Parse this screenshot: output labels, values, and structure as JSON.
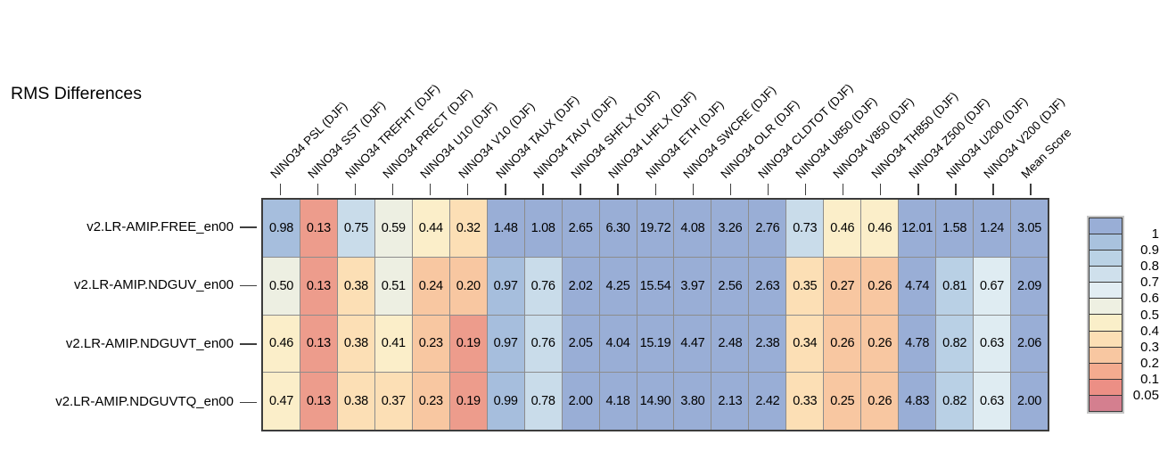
{
  "title": "RMS Differences",
  "chart_data": {
    "type": "heatmap",
    "title": "RMS Differences",
    "legend_position": "right",
    "columns": [
      "NINO34 PSL (DJF)",
      "NINO34 SST (DJF)",
      "NINO34 TREFHT (DJF)",
      "NINO34 PRECT (DJF)",
      "NINO34 U10 (DJF)",
      "NINO34 V10 (DJF)",
      "NINO34 TAUX (DJF)",
      "NINO34 TAUY (DJF)",
      "NINO34 SHFLX (DJF)",
      "NINO34 LHFLX (DJF)",
      "NINO34 ETH (DJF)",
      "NINO34 SWCRE (DJF)",
      "NINO34 OLR (DJF)",
      "NINO34 CLDTOT (DJF)",
      "NINO34 U850 (DJF)",
      "NINO34 V850 (DJF)",
      "NINO34 TH850 (DJF)",
      "NINO34 Z500 (DJF)",
      "NINO34 U200 (DJF)",
      "NINO34 V200 (DJF)",
      "Mean Score"
    ],
    "rows": [
      "v2.LR-AMIP.FREE_en00",
      "v2.LR-AMIP.NDGUV_en00",
      "v2.LR-AMIP.NDGUVT_en00",
      "v2.LR-AMIP.NDGUVTQ_en00"
    ],
    "values": [
      [
        "0.98",
        "0.13",
        "0.75",
        "0.59",
        "0.44",
        "0.32",
        "1.48",
        "1.08",
        "2.65",
        "6.30",
        "19.72",
        "4.08",
        "3.26",
        "2.76",
        "0.73",
        "0.46",
        "0.46",
        "12.01",
        "1.58",
        "1.24",
        "3.05"
      ],
      [
        "0.50",
        "0.13",
        "0.38",
        "0.51",
        "0.24",
        "0.20",
        "0.97",
        "0.76",
        "2.02",
        "4.25",
        "15.54",
        "3.97",
        "2.56",
        "2.63",
        "0.35",
        "0.27",
        "0.26",
        "4.74",
        "0.81",
        "0.67",
        "2.09"
      ],
      [
        "0.46",
        "0.13",
        "0.38",
        "0.41",
        "0.23",
        "0.19",
        "0.97",
        "0.76",
        "2.05",
        "4.04",
        "15.19",
        "4.47",
        "2.48",
        "2.38",
        "0.34",
        "0.26",
        "0.26",
        "4.78",
        "0.82",
        "0.63",
        "2.06"
      ],
      [
        "0.47",
        "0.13",
        "0.38",
        "0.37",
        "0.23",
        "0.19",
        "0.99",
        "0.78",
        "2.00",
        "4.18",
        "14.90",
        "3.80",
        "2.13",
        "2.42",
        "0.33",
        "0.25",
        "0.26",
        "4.83",
        "0.82",
        "0.63",
        "2.00"
      ]
    ],
    "cell_colors": [
      [
        "#a6bedd",
        "#ed9c8c",
        "#c9dcea",
        "#edefe2",
        "#fbeec9",
        "#fcdfb5",
        "#99aed6",
        "#99aed6",
        "#99aed6",
        "#99aed6",
        "#99aed6",
        "#99aed6",
        "#99aed6",
        "#99aed6",
        "#c9dcea",
        "#fbeec9",
        "#fbeec9",
        "#99aed6",
        "#99aed6",
        "#99aed6",
        "#99aed6"
      ],
      [
        "#edefe2",
        "#ed9c8c",
        "#fcdfb5",
        "#edefe2",
        "#f8c7a1",
        "#f8c7a1",
        "#a6bedd",
        "#c9dcea",
        "#99aed6",
        "#99aed6",
        "#99aed6",
        "#99aed6",
        "#99aed6",
        "#99aed6",
        "#fcdfb5",
        "#f8c7a1",
        "#f8c7a1",
        "#99aed6",
        "#b9d0e5",
        "#dfecf2",
        "#99aed6"
      ],
      [
        "#fbeec9",
        "#ed9c8c",
        "#fcdfb5",
        "#fbeec9",
        "#f8c7a1",
        "#ed9c8c",
        "#a6bedd",
        "#c9dcea",
        "#99aed6",
        "#99aed6",
        "#99aed6",
        "#99aed6",
        "#99aed6",
        "#99aed6",
        "#fcdfb5",
        "#f8c7a1",
        "#f8c7a1",
        "#99aed6",
        "#b9d0e5",
        "#dfecf2",
        "#99aed6"
      ],
      [
        "#fbeec9",
        "#ed9c8c",
        "#fcdfb5",
        "#fcdfb5",
        "#f8c7a1",
        "#ed9c8c",
        "#a6bedd",
        "#c9dcea",
        "#99aed6",
        "#99aed6",
        "#99aed6",
        "#99aed6",
        "#99aed6",
        "#99aed6",
        "#fcdfb5",
        "#f8c7a1",
        "#f8c7a1",
        "#99aed6",
        "#b9d0e5",
        "#dfecf2",
        "#99aed6"
      ]
    ],
    "colorbar": {
      "tick_labels": [
        "1",
        "0.9",
        "0.8",
        "0.7",
        "0.6",
        "0.5",
        "0.4",
        "0.3",
        "0.2",
        "0.1",
        "0.05"
      ],
      "segment_colors": [
        "#99aed6",
        "#a9c2de",
        "#bad2e5",
        "#cfe0ec",
        "#e2edf3",
        "#eef0e2",
        "#faefc9",
        "#fcdfb5",
        "#f8c7a1",
        "#f4ab8f",
        "#ec8f85",
        "#d47f8f"
      ]
    }
  }
}
